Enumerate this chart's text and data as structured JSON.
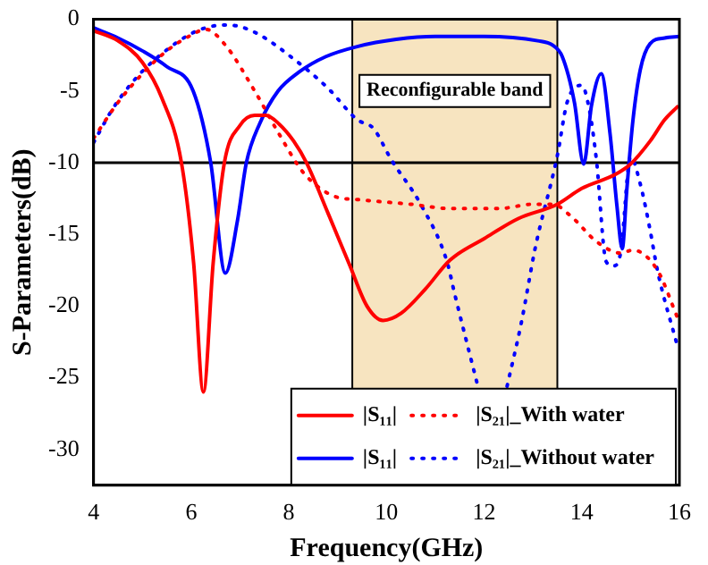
{
  "chart_data": {
    "type": "line",
    "xlabel": "Frequency(GHz)",
    "ylabel": "S-Parameters(dB)",
    "xlim": [
      4,
      16
    ],
    "xticks": [
      4,
      6,
      8,
      10,
      12,
      14,
      16
    ],
    "ylim": [
      -32.5,
      0
    ],
    "yticks": [
      0,
      -5,
      -10,
      -15,
      -20,
      -25,
      -30
    ],
    "grid": false,
    "legend": "bottom right",
    "marker": "none",
    "ref_lines": [
      {
        "axis": "y",
        "value": -10,
        "color": "#000000"
      },
      {
        "axis": "x",
        "value": 9.3,
        "color": "#000000"
      },
      {
        "axis": "x",
        "value": 13.5,
        "color": "#000000"
      }
    ],
    "bands": [
      {
        "axis": "x",
        "from": 9.3,
        "to": 13.5,
        "label": "Reconfigurable band",
        "color": "#f7e4c0"
      }
    ],
    "series": [
      {
        "name": "|S₁₁|",
        "color": "#ff0000",
        "line_style": "solid",
        "x": [
          4,
          4.5,
          5,
          5.4,
          5.8,
          6.05,
          6.25,
          6.45,
          6.68,
          7,
          7.3,
          7.53,
          7.8,
          8.1,
          8.36,
          8.8,
          9.24,
          9.6,
          9.93,
          10.3,
          10.8,
          11.3,
          12,
          12.7,
          13.5,
          14,
          14.7,
          15,
          15.4,
          15.7,
          15.96
        ],
        "values": [
          -0.8,
          -1.5,
          -3,
          -5.5,
          -10,
          -17,
          -26,
          -17,
          -10,
          -7.4,
          -6.7,
          -6.7,
          -7.3,
          -8.5,
          -10,
          -13.5,
          -17.1,
          -20,
          -21,
          -20.5,
          -18.8,
          -16.8,
          -15.3,
          -13.9,
          -12.9,
          -11.8,
          -10.8,
          -10.1,
          -8.5,
          -7,
          -6.1
        ]
      },
      {
        "name": "|S₂₁|_With water",
        "color": "#ff0000",
        "line_style": "dotted",
        "x": [
          4,
          4.5,
          5,
          5.5,
          6,
          6.3,
          6.7,
          7.3,
          7.8,
          8.3,
          8.9,
          9.5,
          10.5,
          11.3,
          12.3,
          13,
          13.4,
          13.8,
          14.3,
          14.8,
          15.05,
          15.55,
          15.96
        ],
        "values": [
          -8.3,
          -5.8,
          -3.8,
          -2.2,
          -1.1,
          -0.7,
          -1.8,
          -5,
          -8,
          -10.7,
          -12.3,
          -12.6,
          -12.9,
          -13.2,
          -13.2,
          -12.9,
          -12.9,
          -13.8,
          -15.5,
          -16.3,
          -16.1,
          -17.5,
          -20.8
        ]
      },
      {
        "name": "|S₁₁|",
        "color": "#0000ff",
        "line_style": "solid",
        "x": [
          4,
          4.5,
          5,
          5.5,
          6.04,
          6.4,
          6.7,
          6.95,
          7.13,
          7.4,
          7.78,
          8.2,
          8.76,
          9.4,
          10.2,
          11,
          12,
          13.1,
          13.4,
          13.6,
          13.85,
          14.04,
          14.2,
          14.4,
          14.58,
          14.72,
          14.83,
          14.92,
          15.05,
          15.2,
          15.4,
          15.7,
          16
        ],
        "values": [
          -0.6,
          -1.3,
          -2.2,
          -3.3,
          -5,
          -10,
          -17.7,
          -14,
          -10,
          -7.3,
          -5,
          -3.7,
          -2.6,
          -1.9,
          -1.4,
          -1.2,
          -1.2,
          -1.5,
          -1.8,
          -2.6,
          -5.8,
          -10.1,
          -6,
          -3.8,
          -8,
          -13,
          -16,
          -12,
          -7,
          -3.5,
          -1.7,
          -1.3,
          -1.2
        ]
      },
      {
        "name": "|S₂₁|_Without water",
        "color": "#0000ff",
        "line_style": "dotted",
        "x": [
          4,
          4.4,
          4.87,
          5.4,
          6,
          6.4,
          6.76,
          7.3,
          8.15,
          8.8,
          9.4,
          9.73,
          10.1,
          10.7,
          11.24,
          11.4,
          11.85,
          12.15,
          12.47,
          12.76,
          13.05,
          13.5,
          13.7,
          14,
          14.15,
          14.3,
          14.5,
          14.65,
          14.8,
          15,
          15.2,
          15.4,
          15.55,
          15.96
        ],
        "values": [
          -8.6,
          -6.2,
          -4.1,
          -2.4,
          -1,
          -0.5,
          -0.4,
          -0.9,
          -2.9,
          -4.8,
          -7,
          -7.6,
          -9.8,
          -12.9,
          -16.9,
          -19.2,
          -25.3,
          null,
          -25.6,
          -21.2,
          -15.9,
          -9.5,
          -5.8,
          -4.6,
          -6.2,
          -9.8,
          -16.9,
          -17.2,
          -16.2,
          -9.6,
          -11.5,
          -14.7,
          -17.5,
          -22.8
        ]
      }
    ]
  }
}
